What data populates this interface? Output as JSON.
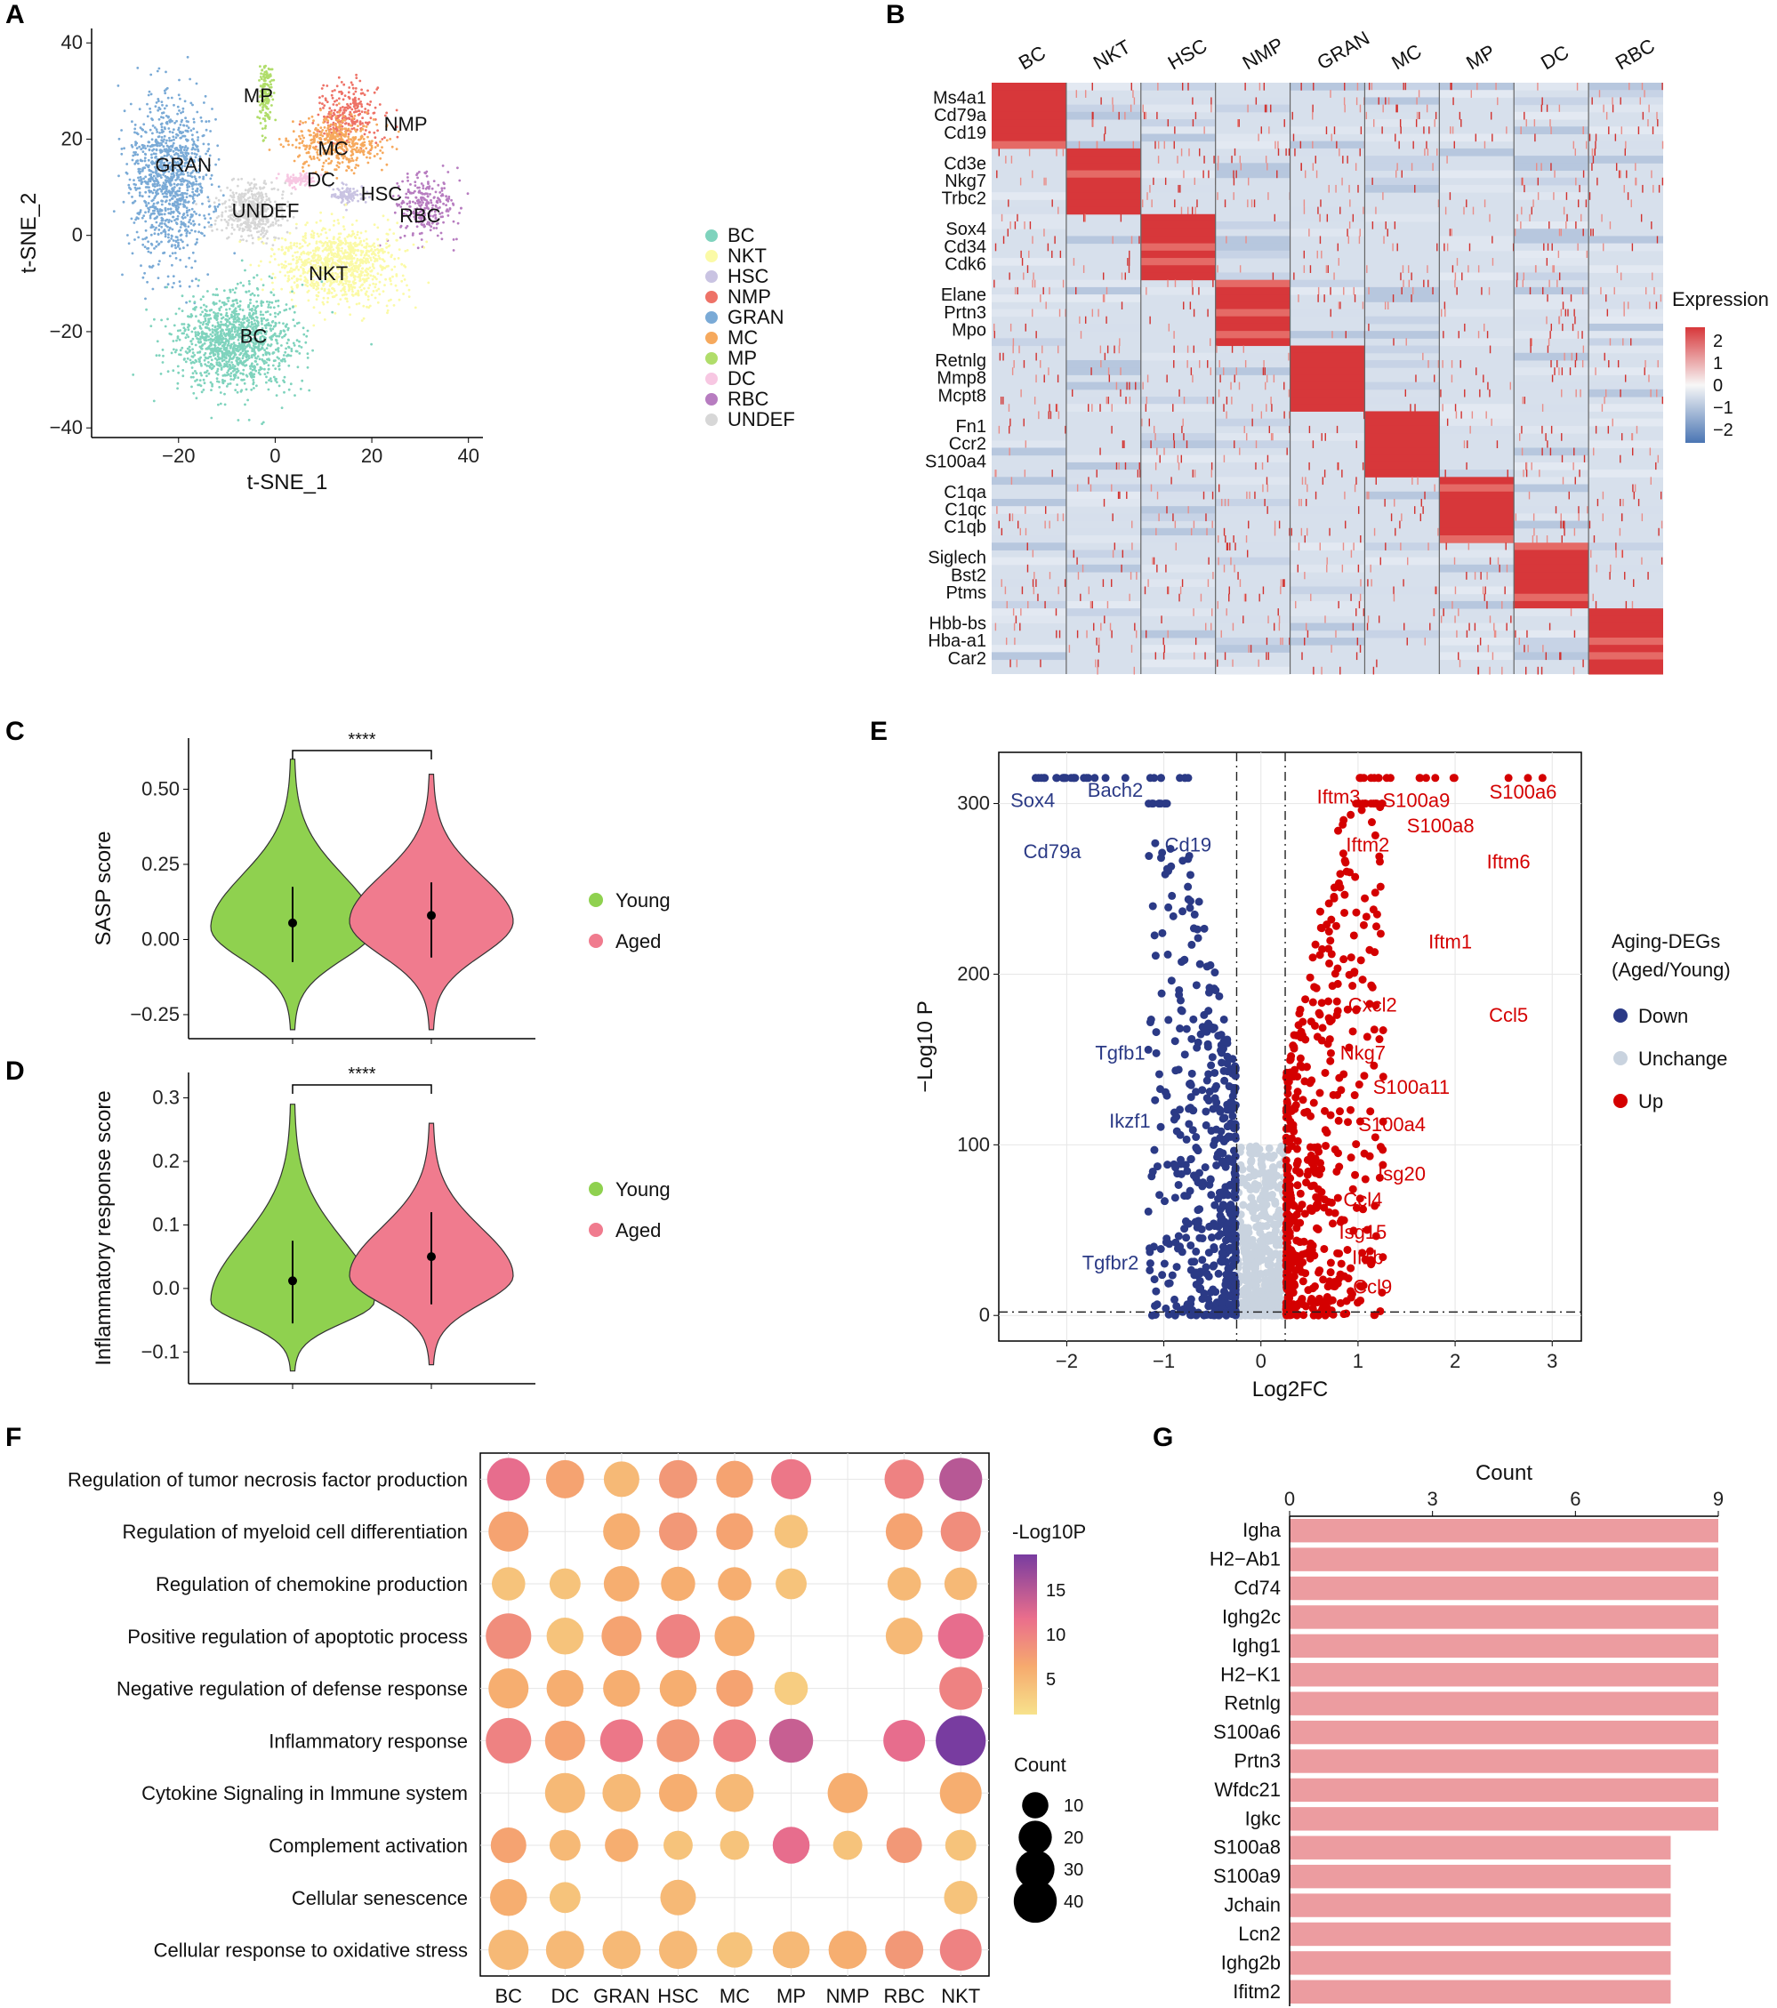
{
  "figure": {
    "panel_letters": [
      "A",
      "B",
      "C",
      "D",
      "E",
      "F",
      "G"
    ],
    "accent_colors": {
      "young": "#8fd14f",
      "aged": "#f07b8e",
      "down": "#2b3a86",
      "up": "#d40000",
      "unchange": "#c9d3df",
      "bar": "#ec9ca0"
    }
  },
  "chart_data": [
    {
      "panel": "A",
      "type": "scatter",
      "title": "",
      "xlabel": "t-SNE_1",
      "ylabel": "t-SNE_2",
      "xlim": [
        -38,
        43
      ],
      "ylim": [
        -42,
        43
      ],
      "xticks": [
        -20,
        0,
        20,
        40
      ],
      "yticks": [
        -40,
        -20,
        0,
        20,
        40
      ],
      "legend": [
        {
          "name": "BC",
          "color": "#7fd3bd"
        },
        {
          "name": "NKT",
          "color": "#fbfaa6"
        },
        {
          "name": "HSC",
          "color": "#c9c3e2"
        },
        {
          "name": "NMP",
          "color": "#ee7267"
        },
        {
          "name": "GRAN",
          "color": "#7aaad6"
        },
        {
          "name": "MC",
          "color": "#f6a95d"
        },
        {
          "name": "MP",
          "color": "#b0dd6a"
        },
        {
          "name": "DC",
          "color": "#f7c7e2"
        },
        {
          "name": "RBC",
          "color": "#b77cc0"
        },
        {
          "name": "UNDEF",
          "color": "#d7d7d7"
        }
      ],
      "clusters": [
        {
          "name": "MP",
          "x": -2,
          "y": 29,
          "sx": 1.2,
          "sy": 6,
          "n": 160
        },
        {
          "name": "NMP",
          "x": 15,
          "y": 25,
          "sx": 6,
          "sy": 6,
          "n": 280
        },
        {
          "name": "MC",
          "x": 13,
          "y": 19,
          "sx": 9,
          "sy": 5,
          "n": 420
        },
        {
          "name": "DC",
          "x": 5,
          "y": 11.5,
          "sx": 3,
          "sy": 1.4,
          "n": 90
        },
        {
          "name": "HSC",
          "x": 15,
          "y": 8.5,
          "sx": 3,
          "sy": 1.8,
          "n": 100
        },
        {
          "name": "RBC",
          "x": 31,
          "y": 6,
          "sx": 6,
          "sy": 6,
          "n": 260
        },
        {
          "name": "GRAN",
          "x": -22,
          "y": 12,
          "sx": 7.5,
          "sy": 15,
          "n": 1100
        },
        {
          "name": "UNDEF",
          "x": -5,
          "y": 5,
          "sx": 6,
          "sy": 5,
          "n": 500
        },
        {
          "name": "NKT",
          "x": 13,
          "y": -6,
          "sx": 11,
          "sy": 7,
          "n": 1000
        },
        {
          "name": "BC",
          "x": -8,
          "y": -22,
          "sx": 11,
          "sy": 9,
          "n": 1300
        }
      ],
      "cluster_labels": [
        {
          "text": "MP",
          "x": -3.5,
          "y": 29
        },
        {
          "text": "NMP",
          "x": 27,
          "y": 23
        },
        {
          "text": "MC",
          "x": 12,
          "y": 18
        },
        {
          "text": "GRAN",
          "x": -19,
          "y": 14.5
        },
        {
          "text": "DC",
          "x": 9.5,
          "y": 11.5
        },
        {
          "text": "HSC",
          "x": 22,
          "y": 8.5
        },
        {
          "text": "UNDEF",
          "x": -2,
          "y": 5
        },
        {
          "text": "RBC",
          "x": 30,
          "y": 4
        },
        {
          "text": "NKT",
          "x": 11,
          "y": -8
        },
        {
          "text": "BC",
          "x": -4.5,
          "y": -21
        }
      ]
    },
    {
      "panel": "B",
      "type": "heatmap",
      "columns": [
        "BC",
        "NKT",
        "HSC",
        "NMP",
        "GRAN",
        "MC",
        "MP",
        "DC",
        "RBC"
      ],
      "gene_groups": [
        [
          "Ms4a1",
          "Cd79a",
          "Cd19"
        ],
        [
          "Cd3e",
          "Nkg7",
          "Trbc2"
        ],
        [
          "Sox4",
          "Cd34",
          "Cdk6"
        ],
        [
          "Elane",
          "Prtn3",
          "Mpo"
        ],
        [
          "Retnlg",
          "Mmp8",
          "Mcpt8"
        ],
        [
          "Fn1",
          "Ccr2",
          "S100a4"
        ],
        [
          "C1qa",
          "C1qc",
          "C1qb"
        ],
        [
          "Siglech",
          "Bst2",
          "Ptms"
        ],
        [
          "Hbb-bs",
          "Hba-a1",
          "Car2"
        ]
      ],
      "legend_title": "Expression",
      "legend_ticks": [
        "2",
        "1",
        "0",
        "−1",
        "−2"
      ],
      "range": [
        -2,
        2
      ]
    },
    {
      "panel": "C",
      "type": "violin",
      "ylabel": "SASP score",
      "yticks": [
        -0.25,
        0.0,
        0.25,
        0.5
      ],
      "ytick_labels": [
        "−0.25",
        "0.00",
        "0.25",
        "0.50"
      ],
      "ylim": [
        -0.33,
        0.67
      ],
      "groups": [
        {
          "name": "Young",
          "color": "#8fd14f",
          "median": 0.055,
          "low": -0.075,
          "high": 0.175,
          "min": -0.3,
          "max": 0.6,
          "mode": 0.04
        },
        {
          "name": "Aged",
          "color": "#f07b8e",
          "median": 0.08,
          "low": -0.06,
          "high": 0.19,
          "min": -0.3,
          "max": 0.55,
          "mode": 0.06
        }
      ],
      "significance": "****"
    },
    {
      "panel": "D",
      "type": "violin",
      "ylabel": "Inflammatory response score",
      "yticks": [
        -0.1,
        0.0,
        0.1,
        0.2,
        0.3
      ],
      "ytick_labels": [
        "−0.1",
        "0.0",
        "0.1",
        "0.2",
        "0.3"
      ],
      "ylim": [
        -0.15,
        0.34
      ],
      "groups": [
        {
          "name": "Young",
          "color": "#8fd14f",
          "median": 0.012,
          "low": -0.055,
          "high": 0.075,
          "min": -0.13,
          "max": 0.29,
          "mode": -0.02
        },
        {
          "name": "Aged",
          "color": "#f07b8e",
          "median": 0.05,
          "low": -0.025,
          "high": 0.12,
          "min": -0.12,
          "max": 0.26,
          "mode": 0.02
        }
      ],
      "significance": "****"
    },
    {
      "panel": "E",
      "type": "scatter",
      "xlabel": "Log2FC",
      "ylabel": "−Log10 P",
      "xlim": [
        -2.7,
        3.3
      ],
      "ylim": [
        -15,
        330
      ],
      "xticks": [
        -2,
        -1,
        0,
        1,
        2,
        3
      ],
      "xtick_labels": [
        "−2",
        "−1",
        "0",
        "1",
        "2",
        "3"
      ],
      "yticks": [
        0,
        100,
        200,
        300
      ],
      "thresholds": {
        "fc": 0.25,
        "p": 2
      },
      "legend_title_1": "Aging-DEGs",
      "legend_title_2": "(Aged/Young)",
      "legend": [
        {
          "name": "Down",
          "color": "#2b3a86"
        },
        {
          "name": "Unchange",
          "color": "#c9d3df"
        },
        {
          "name": "Up",
          "color": "#d40000"
        }
      ],
      "down_labels": [
        {
          "gene": "Sox4",
          "x": -2.35,
          "y": 298
        },
        {
          "gene": "Bach2",
          "x": -1.5,
          "y": 304
        },
        {
          "gene": "Cd79a",
          "x": -2.15,
          "y": 268
        },
        {
          "gene": "Cd19",
          "x": -0.75,
          "y": 272
        },
        {
          "gene": "Tgfb1",
          "x": -1.45,
          "y": 150
        },
        {
          "gene": "Ikzf1",
          "x": -1.35,
          "y": 110
        },
        {
          "gene": "Tgfbr2",
          "x": -1.55,
          "y": 27
        }
      ],
      "up_labels": [
        {
          "gene": "Iftm3",
          "x": 0.8,
          "y": 300
        },
        {
          "gene": "S100a9",
          "x": 1.6,
          "y": 298
        },
        {
          "gene": "S100a8",
          "x": 1.85,
          "y": 283
        },
        {
          "gene": "S100a6",
          "x": 2.7,
          "y": 303
        },
        {
          "gene": "Iftm2",
          "x": 1.1,
          "y": 272
        },
        {
          "gene": "Iftm6",
          "x": 2.55,
          "y": 262
        },
        {
          "gene": "Iftm1",
          "x": 1.95,
          "y": 215
        },
        {
          "gene": "Cxcl2",
          "x": 1.15,
          "y": 178
        },
        {
          "gene": "Ccl5",
          "x": 2.55,
          "y": 172
        },
        {
          "gene": "Nkg7",
          "x": 1.05,
          "y": 150
        },
        {
          "gene": "S100a11",
          "x": 1.55,
          "y": 130
        },
        {
          "gene": "S100a4",
          "x": 1.35,
          "y": 108
        },
        {
          "gene": "Isg20",
          "x": 1.45,
          "y": 79
        },
        {
          "gene": "Ccl4",
          "x": 1.05,
          "y": 64
        },
        {
          "gene": "Isg15",
          "x": 1.05,
          "y": 45
        },
        {
          "gene": "Il1b",
          "x": 1.1,
          "y": 30
        },
        {
          "gene": "Ccl9",
          "x": 1.15,
          "y": 13
        }
      ]
    },
    {
      "panel": "F",
      "type": "scatter",
      "rows": [
        "Regulation of tumor necrosis factor production",
        "Regulation of myeloid cell differentiation",
        "Regulation of chemokine production",
        "Positive regulation of apoptotic process",
        "Negative regulation of defense response",
        "Inflammatory response",
        "Cytokine Signaling in Immune system",
        "Complement activation",
        "Cellular senescence",
        "Cellular response to oxidative stress"
      ],
      "columns": [
        "BC",
        "DC",
        "GRAN",
        "HSC",
        "MC",
        "MP",
        "NMP",
        "RBC",
        "NKT"
      ],
      "color_title": "-Log10P",
      "color_ticks": [
        5,
        10,
        15
      ],
      "color_range": [
        1,
        19
      ],
      "size_title": "Count",
      "size_ticks": [
        10,
        20,
        30,
        40
      ],
      "cells": [
        [
          [
            30,
            12
          ],
          [
            22,
            7
          ],
          [
            18,
            5
          ],
          [
            22,
            8
          ],
          [
            20,
            7
          ],
          [
            25,
            11
          ],
          null,
          [
            24,
            10
          ],
          [
            30,
            15
          ]
        ],
        [
          [
            25,
            7
          ],
          null,
          [
            20,
            6
          ],
          [
            22,
            8
          ],
          [
            20,
            7
          ],
          [
            15,
            4
          ],
          null,
          [
            20,
            7
          ],
          [
            25,
            9
          ]
        ],
        [
          [
            15,
            4
          ],
          [
            12,
            4
          ],
          [
            18,
            6
          ],
          [
            16,
            6
          ],
          [
            15,
            6
          ],
          [
            12,
            4
          ],
          null,
          [
            15,
            5
          ],
          [
            14,
            5
          ]
        ],
        [
          [
            35,
            9
          ],
          [
            20,
            4
          ],
          [
            25,
            7
          ],
          [
            32,
            10
          ],
          [
            25,
            6
          ],
          null,
          null,
          [
            20,
            5
          ],
          [
            35,
            12
          ]
        ],
        [
          [
            25,
            6
          ],
          [
            20,
            6
          ],
          [
            20,
            6
          ],
          [
            20,
            6
          ],
          [
            20,
            7
          ],
          [
            15,
            3
          ],
          null,
          null,
          [
            30,
            10
          ]
        ],
        [
          [
            35,
            10
          ],
          [
            25,
            7
          ],
          [
            30,
            11
          ],
          [
            30,
            8
          ],
          [
            30,
            10
          ],
          [
            32,
            14
          ],
          null,
          [
            28,
            12
          ],
          [
            45,
            19
          ]
        ],
        [
          null,
          [
            25,
            5
          ],
          [
            22,
            5
          ],
          [
            22,
            6
          ],
          [
            22,
            5
          ],
          null,
          [
            25,
            6
          ],
          null,
          [
            28,
            6
          ]
        ],
        [
          [
            18,
            7
          ],
          [
            12,
            5
          ],
          [
            15,
            6
          ],
          [
            10,
            4
          ],
          [
            10,
            4
          ],
          [
            20,
            12
          ],
          [
            10,
            4
          ],
          [
            18,
            8
          ],
          [
            12,
            4
          ]
        ],
        [
          [
            20,
            6
          ],
          [
            12,
            4
          ],
          null,
          [
            18,
            5
          ],
          null,
          null,
          null,
          null,
          [
            15,
            4
          ]
        ],
        [
          [
            25,
            5
          ],
          [
            22,
            5
          ],
          [
            22,
            5
          ],
          [
            22,
            5
          ],
          [
            18,
            4
          ],
          [
            20,
            5
          ],
          [
            22,
            6
          ],
          [
            22,
            8
          ],
          [
            28,
            10
          ]
        ]
      ]
    },
    {
      "panel": "G",
      "type": "bar",
      "orientation": "horizontal",
      "title": "Count",
      "xlim": [
        0,
        9
      ],
      "xticks": [
        0,
        3,
        6,
        9
      ],
      "categories": [
        "Igha",
        "H2−Ab1",
        "Cd74",
        "Ighg2c",
        "Ighg1",
        "H2−K1",
        "Retnlg",
        "S100a6",
        "Prtn3",
        "Wfdc21",
        "Igkc",
        "S100a8",
        "S100a9",
        "Jchain",
        "Lcn2",
        "Ighg2b",
        "Ifitm2"
      ],
      "values": [
        9,
        9,
        9,
        9,
        9,
        9,
        9,
        9,
        9,
        9,
        9,
        8,
        8,
        8,
        8,
        8,
        8
      ]
    }
  ]
}
